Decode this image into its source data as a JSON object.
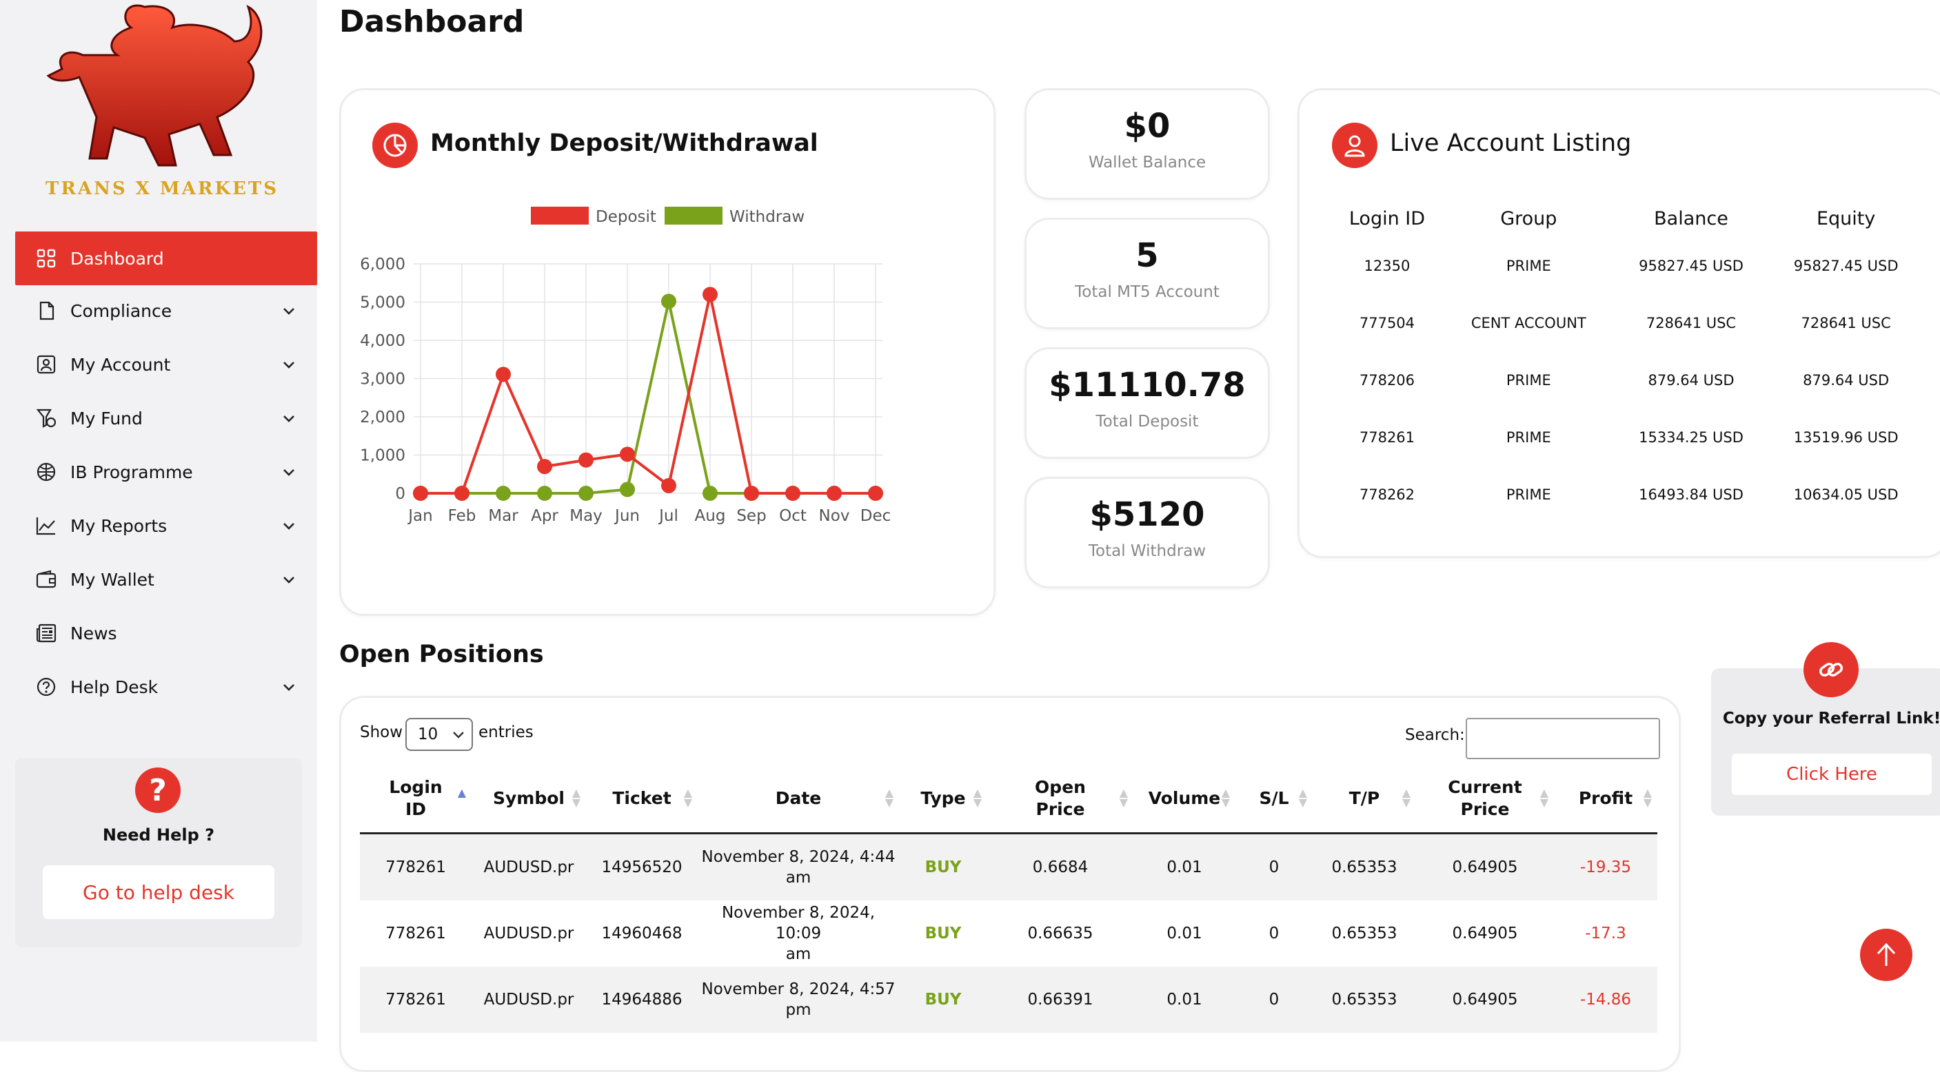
{
  "page": {
    "title": "Dashboard"
  },
  "brand": {
    "logo_text": "TRANS X MARKETS",
    "accent": "#e5342b"
  },
  "sidebar": {
    "items": [
      {
        "label": "Dashboard",
        "icon": "grid-icon",
        "active": true,
        "has_chevron": false
      },
      {
        "label": "Compliance",
        "icon": "document-icon",
        "has_chevron": true
      },
      {
        "label": "My Account",
        "icon": "user-card-icon",
        "has_chevron": true
      },
      {
        "label": "My Fund",
        "icon": "money-icon",
        "has_chevron": true
      },
      {
        "label": "IB Programme",
        "icon": "network-icon",
        "has_chevron": true
      },
      {
        "label": "My Reports",
        "icon": "line-chart-icon",
        "has_chevron": true
      },
      {
        "label": "My Wallet",
        "icon": "wallet-icon",
        "has_chevron": true
      },
      {
        "label": "News",
        "icon": "news-icon",
        "has_chevron": false
      },
      {
        "label": "Help Desk",
        "icon": "question-icon",
        "has_chevron": true
      }
    ],
    "help": {
      "title": "Need Help ?",
      "button": "Go to help desk"
    }
  },
  "deposit_card": {
    "title": "Monthly Deposit/Withdrawal"
  },
  "chart_data": {
    "type": "line",
    "categories": [
      "Jan",
      "Feb",
      "Mar",
      "Apr",
      "May",
      "Jun",
      "Jul",
      "Aug",
      "Sep",
      "Oct",
      "Nov",
      "Dec"
    ],
    "series": [
      {
        "name": "Deposit",
        "color": "#e5342b",
        "values": [
          0,
          0,
          3110.78,
          700,
          870,
          1020,
          200,
          5200,
          0,
          0,
          0,
          0
        ]
      },
      {
        "name": "Withdraw",
        "color": "#7aa21a",
        "values": [
          0,
          0,
          0,
          0,
          0,
          100,
          5020,
          0,
          0,
          0,
          0,
          0
        ]
      }
    ],
    "ylim": [
      0,
      6000
    ],
    "yticks": [
      "0",
      "1,000",
      "2,000",
      "3,000",
      "4,000",
      "5,000",
      "6,000"
    ],
    "grid": true,
    "legend": "top"
  },
  "stats": [
    {
      "value": "$0",
      "label": "Wallet Balance"
    },
    {
      "value": "5",
      "label": "Total MT5 Account"
    },
    {
      "value": "$11110.78",
      "label": "Total Deposit"
    },
    {
      "value": "$5120",
      "label": "Total Withdraw"
    }
  ],
  "live_accounts": {
    "title": "Live Account Listing",
    "columns": [
      "Login ID",
      "Group",
      "Balance",
      "Equity"
    ],
    "rows": [
      [
        "12350",
        "PRIME",
        "95827.45 USD",
        "95827.45 USD"
      ],
      [
        "777504",
        "CENT ACCOUNT",
        "728641 USC",
        "728641 USC"
      ],
      [
        "778206",
        "PRIME",
        "879.64 USD",
        "879.64 USD"
      ],
      [
        "778261",
        "PRIME",
        "15334.25 USD",
        "13519.96 USD"
      ],
      [
        "778262",
        "PRIME",
        "16493.84 USD",
        "10634.05 USD"
      ]
    ]
  },
  "open_positions": {
    "title": "Open Positions",
    "show_label": "Show",
    "entries_value": "10",
    "entries_label": "entries",
    "search_label": "Search:",
    "columns": [
      [
        "Login",
        "ID"
      ],
      [
        "Symbol"
      ],
      [
        "Ticket"
      ],
      [
        "Date"
      ],
      [
        "Type"
      ],
      [
        "Open",
        "Price"
      ],
      [
        "Volume"
      ],
      [
        "S/L"
      ],
      [
        "T/P"
      ],
      [
        "Current",
        "Price"
      ],
      [
        "Profit"
      ]
    ],
    "rows": [
      {
        "login": "778261",
        "symbol": "AUDUSD.pr",
        "ticket": "14956520",
        "date1": "November 8, 2024, 4:44",
        "date2": "am",
        "type": "BUY",
        "open": "0.6684",
        "volume": "0.01",
        "sl": "0",
        "tp": "0.65353",
        "current": "0.64905",
        "profit": "-19.35"
      },
      {
        "login": "778261",
        "symbol": "AUDUSD.pr",
        "ticket": "14960468",
        "date1": "November 8, 2024, 10:09",
        "date2": "am",
        "type": "BUY",
        "open": "0.66635",
        "volume": "0.01",
        "sl": "0",
        "tp": "0.65353",
        "current": "0.64905",
        "profit": "-17.3"
      },
      {
        "login": "778261",
        "symbol": "AUDUSD.pr",
        "ticket": "14964886",
        "date1": "November 8, 2024, 4:57",
        "date2": "pm",
        "type": "BUY",
        "open": "0.66391",
        "volume": "0.01",
        "sl": "0",
        "tp": "0.65353",
        "current": "0.64905",
        "profit": "-14.86"
      }
    ]
  },
  "referral": {
    "title": "Copy your Referral Link!",
    "button": "Click Here"
  }
}
